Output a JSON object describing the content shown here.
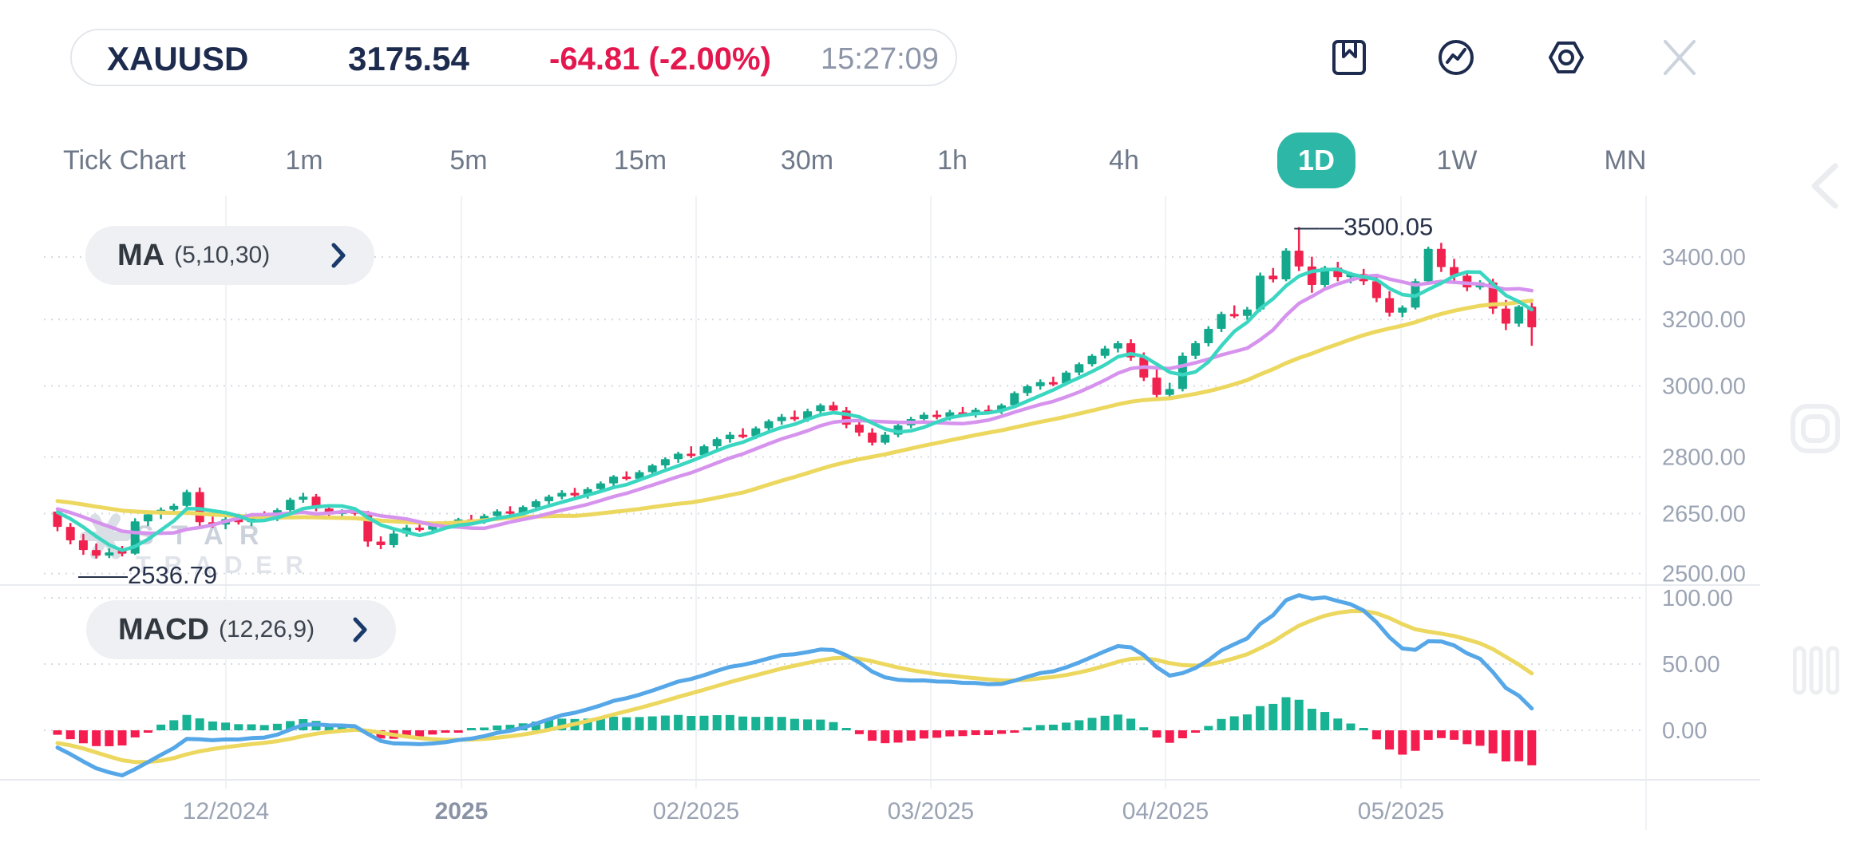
{
  "header": {
    "symbol": "XAUUSD",
    "price": "3175.54",
    "change": "-64.81 (-2.00%)",
    "time": "15:27:09"
  },
  "toolbar": {
    "icons": [
      {
        "name": "bookmark-icon"
      },
      {
        "name": "indicator-pulse-icon"
      },
      {
        "name": "settings-hex-icon"
      },
      {
        "name": "close-icon"
      }
    ]
  },
  "timeframes": [
    {
      "label": "Tick Chart",
      "active": false
    },
    {
      "label": "1m",
      "active": false
    },
    {
      "label": "5m",
      "active": false
    },
    {
      "label": "15m",
      "active": false
    },
    {
      "label": "30m",
      "active": false
    },
    {
      "label": "1h",
      "active": false
    },
    {
      "label": "4h",
      "active": false
    },
    {
      "label": "1D",
      "active": true
    },
    {
      "label": "1W",
      "active": false
    },
    {
      "label": "MN",
      "active": false
    }
  ],
  "indicators": {
    "ma": {
      "name": "MA",
      "params": "(5,10,30)"
    },
    "macd": {
      "name": "MACD",
      "params": "(12,26,9)"
    }
  },
  "annotations": {
    "high": "3500.05",
    "low": "2536.79"
  },
  "watermark": {
    "line1": "S T A R",
    "line2": "T R A D E R"
  },
  "price_axis": [
    "3400.00",
    "3200.00",
    "3000.00",
    "2800.00",
    "2650.00",
    "2500.00"
  ],
  "macd_axis": [
    "100.00",
    "50.00",
    "0.00"
  ],
  "date_axis": [
    {
      "label": "12/2024",
      "bold": false
    },
    {
      "label": "2025",
      "bold": true
    },
    {
      "label": "02/2025",
      "bold": false
    },
    {
      "label": "03/2025",
      "bold": false
    },
    {
      "label": "04/2025",
      "bold": false
    },
    {
      "label": "05/2025",
      "bold": false
    }
  ],
  "colors": {
    "navy": "#1d2b4e",
    "red": "#e4174e",
    "gray_text": "#8d96a8",
    "tab_active_bg": "#2db7a7",
    "candle_up": "#14a98c",
    "candle_down": "#f2224f",
    "ma5": "#3bd6c1",
    "ma10": "#d693ee",
    "ma30": "#ecd75f",
    "macd_line": "#55a7e8",
    "macd_signal": "#ecd75f",
    "hist_up": "#18b394",
    "hist_down": "#f51d4f",
    "grid_dotted": "#d5dae1",
    "grid_month": "#f1f2f5",
    "divider": "#e8eaee",
    "axis_text": "#9ba4b4",
    "annotation_text": "#27324a",
    "watermark_text": "#ccd2dc",
    "watermark_text2": "#e0e4ea",
    "ghost_icon": "#eaecef"
  },
  "chart_data": {
    "type": "candlestick",
    "symbol": "XAUUSD",
    "timeframe": "1D",
    "price_axis_values": [
      3400,
      3200,
      3000,
      2800,
      2650,
      2500
    ],
    "macd_axis_values": [
      100,
      50,
      0
    ],
    "high_marker": 3500.05,
    "low_marker": 2536.79,
    "ma_periods": [
      5,
      10,
      30
    ],
    "macd_params": [
      12,
      26,
      9
    ],
    "x_labels": [
      "12/2024",
      "2025",
      "02/2025",
      "03/2025",
      "04/2025",
      "05/2025"
    ],
    "candles": [
      [
        2655,
        2662,
        2605,
        2616
      ],
      [
        2616,
        2626,
        2572,
        2582
      ],
      [
        2582,
        2598,
        2546,
        2558
      ],
      [
        2558,
        2574,
        2536.79,
        2544
      ],
      [
        2544,
        2562,
        2538,
        2552
      ],
      [
        2556,
        2568,
        2542,
        2549
      ],
      [
        2549,
        2638,
        2546,
        2630
      ],
      [
        2630,
        2656,
        2618,
        2648
      ],
      [
        2648,
        2666,
        2636,
        2660
      ],
      [
        2660,
        2676,
        2650,
        2670
      ],
      [
        2670,
        2712,
        2664,
        2706
      ],
      [
        2706,
        2718,
        2616,
        2628
      ],
      [
        2628,
        2652,
        2614,
        2622
      ],
      [
        2622,
        2641,
        2610,
        2636
      ],
      [
        2636,
        2649,
        2622,
        2628
      ],
      [
        2628,
        2645,
        2618,
        2641
      ],
      [
        2641,
        2656,
        2630,
        2635
      ],
      [
        2635,
        2664,
        2631,
        2659
      ],
      [
        2659,
        2691,
        2654,
        2686
      ],
      [
        2686,
        2704,
        2678,
        2694
      ],
      [
        2694,
        2701,
        2656,
        2663
      ],
      [
        2663,
        2673,
        2641,
        2649
      ],
      [
        2649,
        2661,
        2639,
        2656
      ],
      [
        2656,
        2663,
        2645,
        2651
      ],
      [
        2651,
        2657,
        2566,
        2579
      ],
      [
        2579,
        2592,
        2560,
        2570
      ],
      [
        2570,
        2607,
        2564,
        2599
      ],
      [
        2599,
        2621,
        2591,
        2614
      ],
      [
        2614,
        2627,
        2604,
        2609
      ],
      [
        2609,
        2624,
        2600,
        2619
      ],
      [
        2619,
        2631,
        2611,
        2624
      ],
      [
        2624,
        2639,
        2614,
        2635
      ],
      [
        2635,
        2647,
        2627,
        2631
      ],
      [
        2631,
        2649,
        2624,
        2644
      ],
      [
        2644,
        2661,
        2637,
        2656
      ],
      [
        2656,
        2669,
        2647,
        2651
      ],
      [
        2651,
        2671,
        2645,
        2667
      ],
      [
        2667,
        2687,
        2659,
        2682
      ],
      [
        2682,
        2699,
        2674,
        2694
      ],
      [
        2694,
        2711,
        2687,
        2704
      ],
      [
        2704,
        2717,
        2691,
        2697
      ],
      [
        2697,
        2719,
        2689,
        2714
      ],
      [
        2714,
        2734,
        2707,
        2729
      ],
      [
        2729,
        2751,
        2721,
        2747
      ],
      [
        2747,
        2761,
        2737,
        2741
      ],
      [
        2741,
        2764,
        2734,
        2759
      ],
      [
        2759,
        2781,
        2751,
        2777
      ],
      [
        2777,
        2799,
        2769,
        2794
      ],
      [
        2794,
        2814,
        2784,
        2809
      ],
      [
        2809,
        2829,
        2797,
        2805
      ],
      [
        2805,
        2834,
        2799,
        2829
      ],
      [
        2829,
        2854,
        2821,
        2849
      ],
      [
        2849,
        2869,
        2839,
        2861
      ],
      [
        2861,
        2879,
        2851,
        2857
      ],
      [
        2857,
        2884,
        2849,
        2879
      ],
      [
        2879,
        2904,
        2871,
        2899
      ],
      [
        2899,
        2919,
        2889,
        2911
      ],
      [
        2911,
        2929,
        2899,
        2904
      ],
      [
        2904,
        2934,
        2897,
        2927
      ],
      [
        2927,
        2949,
        2917,
        2944
      ],
      [
        2944,
        2954,
        2919,
        2929
      ],
      [
        2929,
        2939,
        2879,
        2889
      ],
      [
        2889,
        2904,
        2857,
        2867
      ],
      [
        2867,
        2879,
        2831,
        2839
      ],
      [
        2839,
        2869,
        2834,
        2861
      ],
      [
        2861,
        2894,
        2854,
        2887
      ],
      [
        2887,
        2911,
        2879,
        2905
      ],
      [
        2905,
        2924,
        2897,
        2917
      ],
      [
        2917,
        2929,
        2904,
        2911
      ],
      [
        2911,
        2931,
        2901,
        2924
      ],
      [
        2924,
        2939,
        2914,
        2919
      ],
      [
        2919,
        2937,
        2909,
        2931
      ],
      [
        2931,
        2944,
        2921,
        2927
      ],
      [
        2927,
        2949,
        2919,
        2944
      ],
      [
        2944,
        2984,
        2937,
        2979
      ],
      [
        2979,
        3004,
        2971,
        2999
      ],
      [
        2999,
        3019,
        2989,
        3011
      ],
      [
        3011,
        3027,
        2999,
        3007
      ],
      [
        3007,
        3044,
        3001,
        3039
      ],
      [
        3039,
        3069,
        3031,
        3064
      ],
      [
        3064,
        3094,
        3057,
        3089
      ],
      [
        3089,
        3119,
        3081,
        3111
      ],
      [
        3111,
        3134,
        3099,
        3127
      ],
      [
        3127,
        3139,
        3074,
        3084
      ],
      [
        3084,
        3099,
        3014,
        3024
      ],
      [
        3024,
        3054,
        2961,
        2974
      ],
      [
        2974,
        3009,
        2959,
        2991
      ],
      [
        2991,
        3099,
        2984,
        3089
      ],
      [
        3089,
        3134,
        3079,
        3127
      ],
      [
        3127,
        3179,
        3117,
        3171
      ],
      [
        3171,
        3224,
        3161,
        3217
      ],
      [
        3217,
        3244,
        3204,
        3211
      ],
      [
        3211,
        3239,
        3199,
        3231
      ],
      [
        3231,
        3349,
        3224,
        3339
      ],
      [
        3339,
        3364,
        3317,
        3327
      ],
      [
        3327,
        3429,
        3321,
        3421
      ],
      [
        3421,
        3500.05,
        3354,
        3369
      ],
      [
        3369,
        3401,
        3284,
        3309
      ],
      [
        3309,
        3371,
        3301,
        3365
      ],
      [
        3365,
        3384,
        3321,
        3334
      ],
      [
        3334,
        3351,
        3314,
        3344
      ],
      [
        3344,
        3361,
        3309,
        3321
      ],
      [
        3321,
        3339,
        3254,
        3267
      ],
      [
        3267,
        3289,
        3209,
        3221
      ],
      [
        3221,
        3244,
        3207,
        3237
      ],
      [
        3237,
        3329,
        3231,
        3321
      ],
      [
        3321,
        3434,
        3314,
        3427
      ],
      [
        3427,
        3447,
        3351,
        3367
      ],
      [
        3367,
        3394,
        3321,
        3339
      ],
      [
        3339,
        3354,
        3289,
        3301
      ],
      [
        3301,
        3324,
        3294,
        3317
      ],
      [
        3317,
        3329,
        3217,
        3234
      ],
      [
        3234,
        3261,
        3167,
        3187
      ],
      [
        3187,
        3245,
        3177,
        3240
      ],
      [
        3240,
        3252,
        3119,
        3175.54
      ]
    ]
  }
}
